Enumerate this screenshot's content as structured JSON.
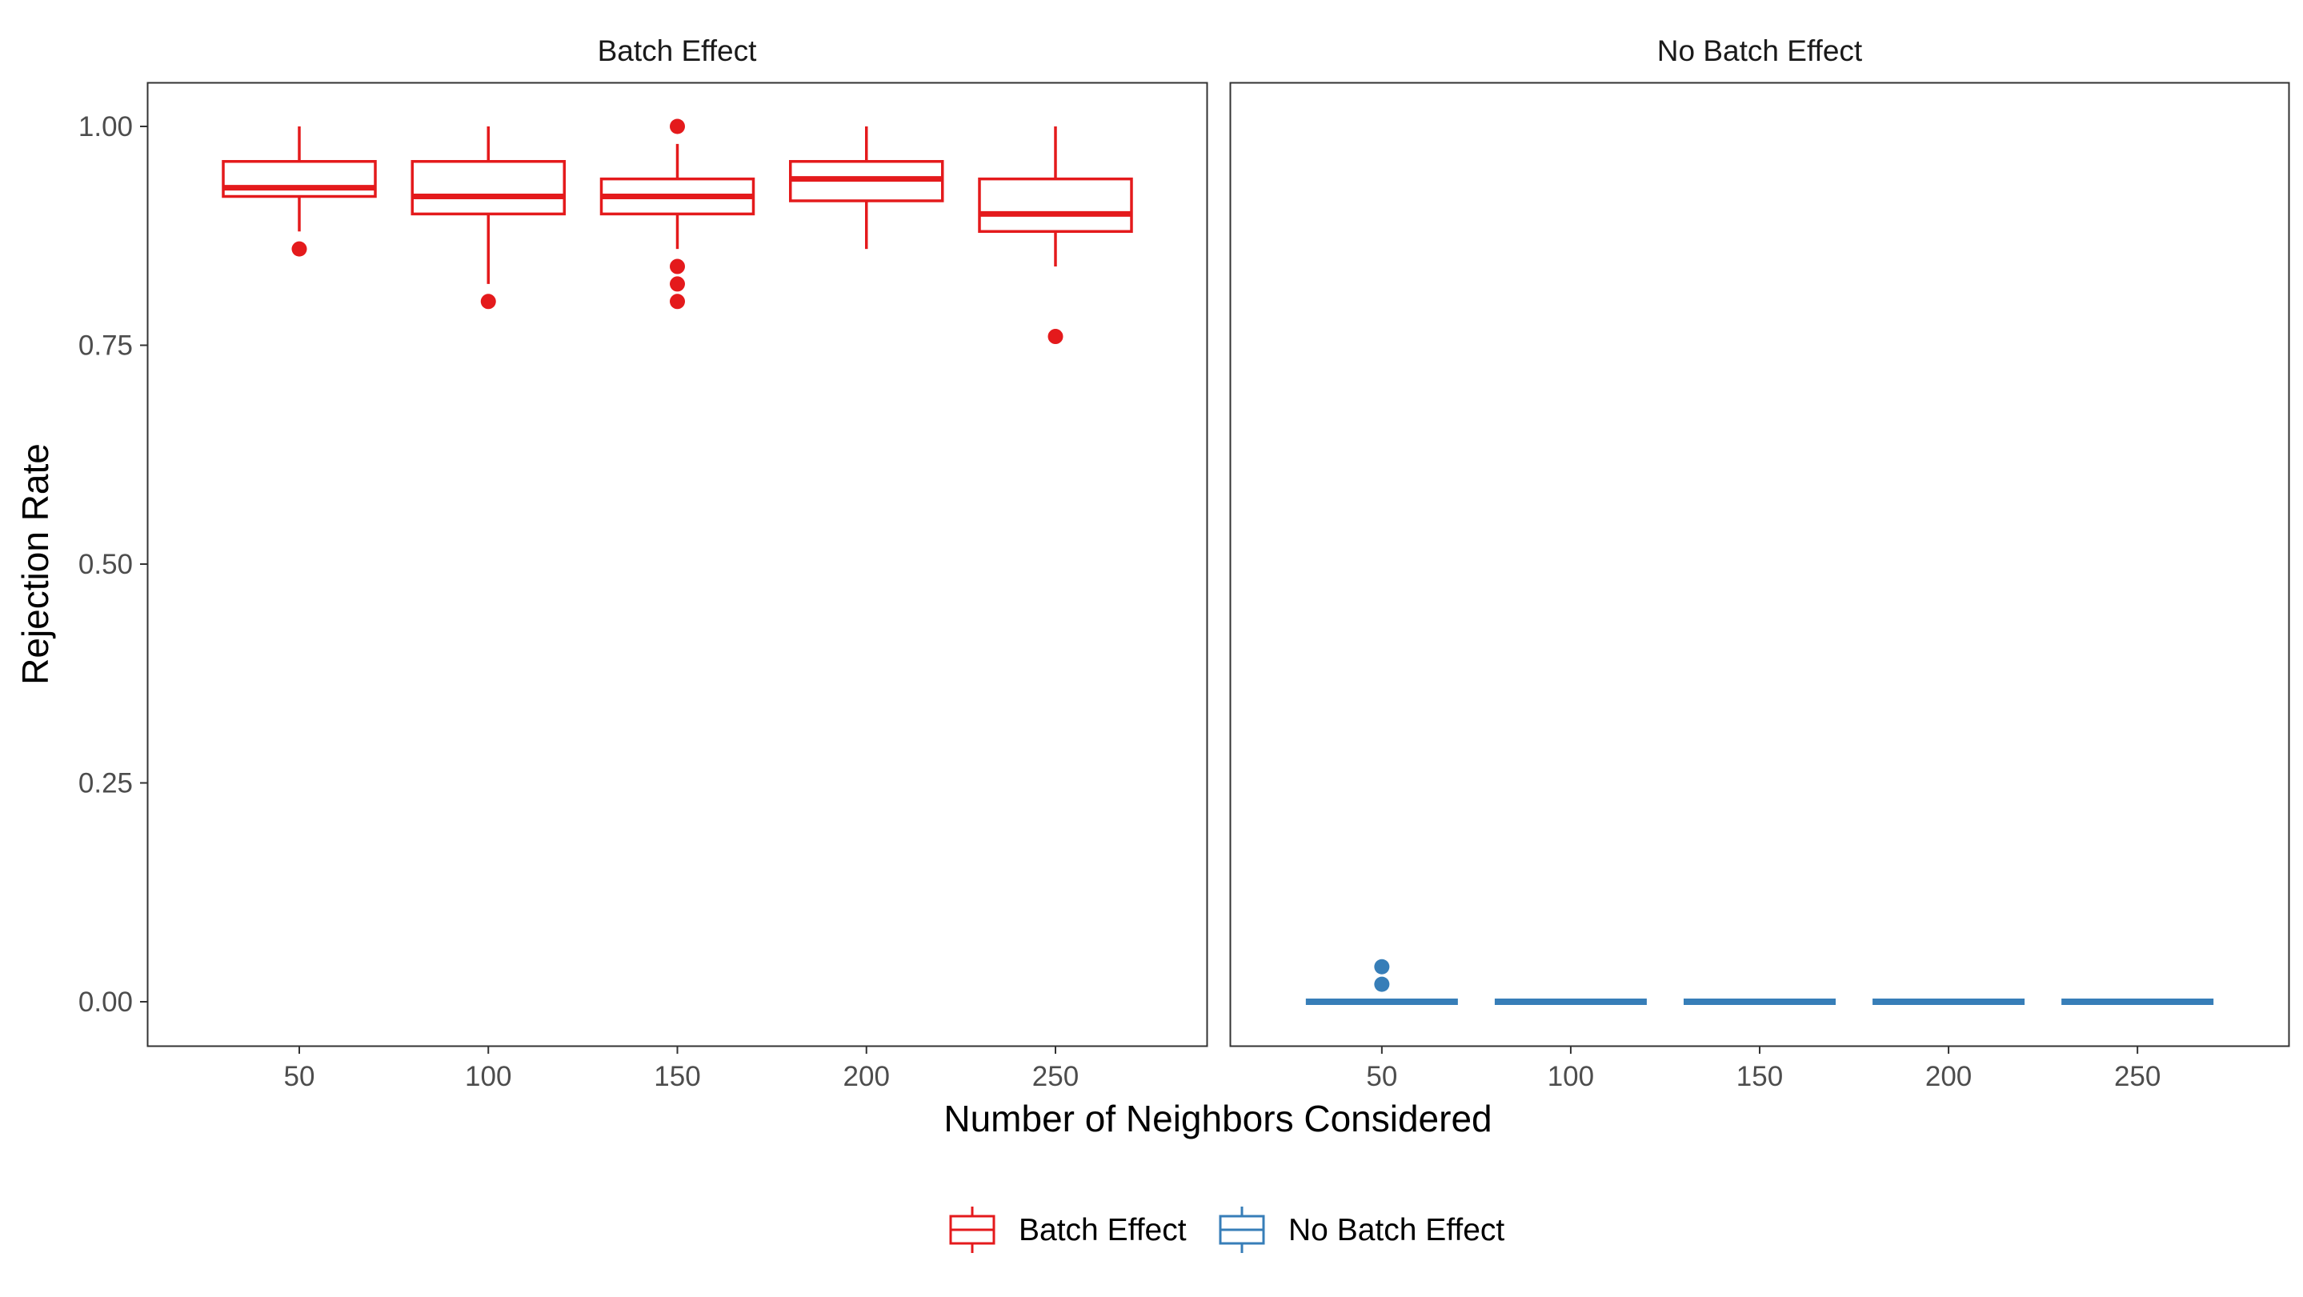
{
  "chart_data": {
    "type": "boxplot",
    "xlabel": "Number of Neighbors Considered",
    "ylabel": "Rejection Rate",
    "x_categories": [
      "50",
      "100",
      "150",
      "200",
      "250"
    ],
    "ylim": [
      -0.05,
      1.05
    ],
    "y_ticks": [
      0.0,
      0.25,
      0.5,
      0.75,
      1.0
    ],
    "y_tick_labels": [
      "0.00",
      "0.25",
      "0.50",
      "0.75",
      "1.00"
    ],
    "grid": false,
    "legend_position": "bottom",
    "panels": [
      {
        "label": "Batch Effect",
        "series": "Batch Effect",
        "boxes": [
          {
            "x": "50",
            "min": 0.88,
            "q1": 0.92,
            "median": 0.93,
            "q3": 0.96,
            "max": 1.0,
            "outliers": [
              0.86
            ]
          },
          {
            "x": "100",
            "min": 0.82,
            "q1": 0.9,
            "median": 0.92,
            "q3": 0.96,
            "max": 1.0,
            "outliers": [
              0.8
            ]
          },
          {
            "x": "150",
            "min": 0.86,
            "q1": 0.9,
            "median": 0.92,
            "q3": 0.94,
            "max": 0.98,
            "outliers": [
              1.0,
              0.84,
              0.82,
              0.8
            ]
          },
          {
            "x": "200",
            "min": 0.86,
            "q1": 0.915,
            "median": 0.94,
            "q3": 0.96,
            "max": 1.0,
            "outliers": []
          },
          {
            "x": "250",
            "min": 0.84,
            "q1": 0.88,
            "median": 0.9,
            "q3": 0.94,
            "max": 1.0,
            "outliers": [
              0.76
            ]
          }
        ]
      },
      {
        "label": "No Batch Effect",
        "series": "No Batch Effect",
        "boxes": [
          {
            "x": "50",
            "min": 0.0,
            "q1": 0.0,
            "median": 0.0,
            "q3": 0.0,
            "max": 0.0,
            "outliers": [
              0.04,
              0.02
            ]
          },
          {
            "x": "100",
            "min": 0.0,
            "q1": 0.0,
            "median": 0.0,
            "q3": 0.0,
            "max": 0.0,
            "outliers": []
          },
          {
            "x": "150",
            "min": 0.0,
            "q1": 0.0,
            "median": 0.0,
            "q3": 0.0,
            "max": 0.0,
            "outliers": []
          },
          {
            "x": "200",
            "min": 0.0,
            "q1": 0.0,
            "median": 0.0,
            "q3": 0.0,
            "max": 0.0,
            "outliers": []
          },
          {
            "x": "250",
            "min": 0.0,
            "q1": 0.0,
            "median": 0.0,
            "q3": 0.0,
            "max": 0.0,
            "outliers": []
          }
        ]
      }
    ],
    "legend": [
      {
        "name": "Batch Effect",
        "color": "#E41A1C"
      },
      {
        "name": "No Batch Effect",
        "color": "#377EB8"
      }
    ]
  }
}
